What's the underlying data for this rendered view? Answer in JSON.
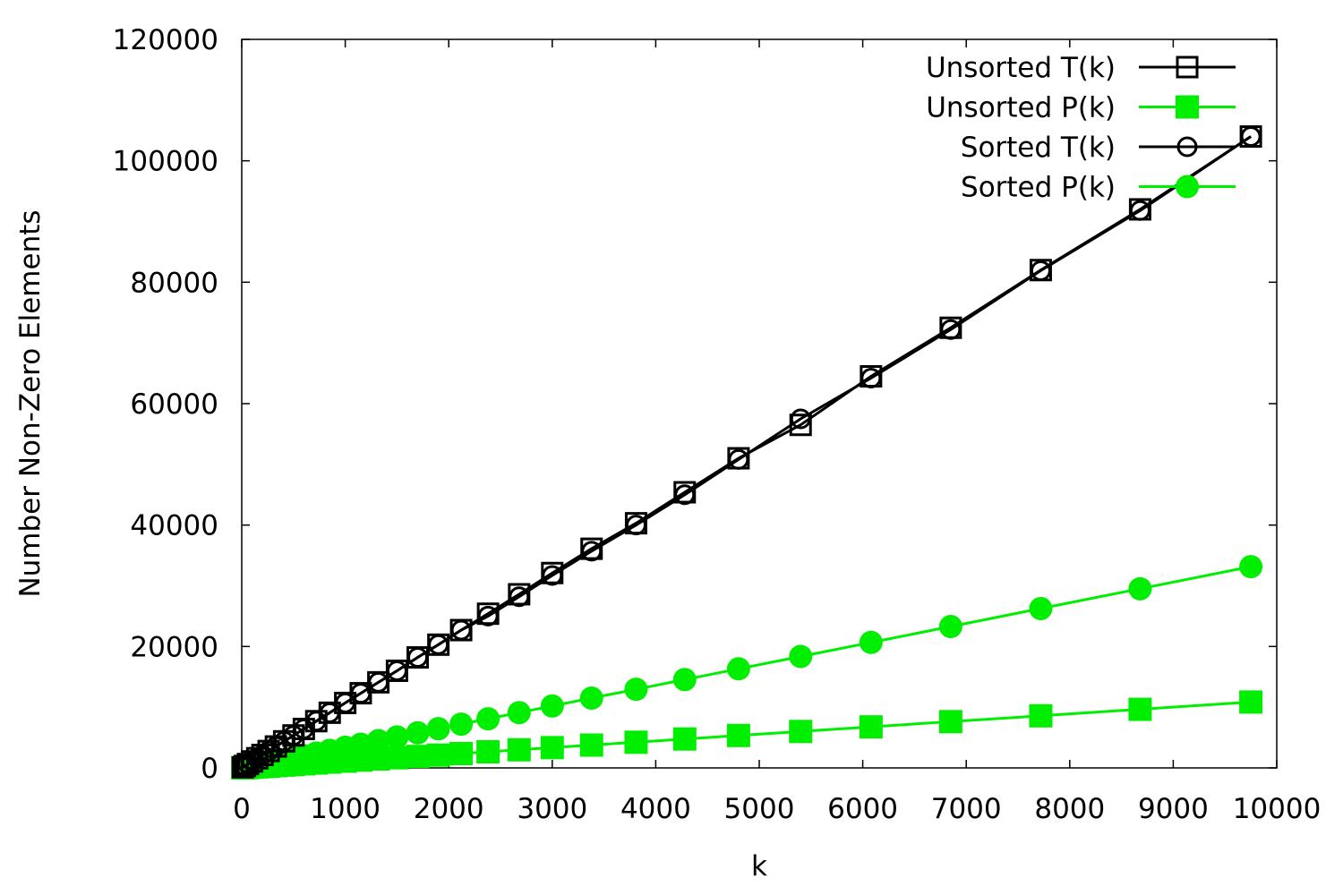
{
  "chart_data": {
    "type": "line",
    "title": "",
    "xlabel": "k",
    "ylabel": "Number Non-Zero Elements",
    "xlim": [
      0,
      10000
    ],
    "ylim": [
      0,
      120000
    ],
    "x_ticks": [
      "0",
      "1000",
      "2000",
      "3000",
      "4000",
      "5000",
      "6000",
      "7000",
      "8000",
      "9000",
      "10000"
    ],
    "y_ticks": [
      "0",
      "20000",
      "40000",
      "60000",
      "80000",
      "100000",
      "120000"
    ],
    "grid": false,
    "legend_position": "top-right",
    "x": [
      10,
      30,
      60,
      100,
      150,
      200,
      260,
      330,
      410,
      500,
      600,
      720,
      850,
      1000,
      1150,
      1320,
      1500,
      1700,
      1900,
      2120,
      2380,
      2680,
      3000,
      3380,
      3810,
      4280,
      4800,
      5400,
      6080,
      6850,
      7720,
      8680,
      9750
    ],
    "series": [
      {
        "name": "Unsorted T(k)",
        "color": "#000000",
        "marker": "open-square",
        "values": [
          110,
          320,
          640,
          1070,
          1600,
          2140,
          2780,
          3530,
          4380,
          5350,
          6420,
          7700,
          9090,
          10700,
          12300,
          14100,
          16000,
          18200,
          20300,
          22700,
          25400,
          28600,
          32100,
          36100,
          40300,
          45400,
          51000,
          56500,
          64500,
          72500,
          82000,
          92000,
          104000
        ]
      },
      {
        "name": "Unsorted P(k)",
        "color": "#00ee00",
        "marker": "filled-square",
        "values": [
          11,
          33,
          66,
          110,
          165,
          220,
          290,
          370,
          460,
          560,
          670,
          800,
          950,
          1110,
          1280,
          1470,
          1670,
          1890,
          2110,
          2360,
          2650,
          2980,
          3340,
          3760,
          4230,
          4760,
          5340,
          6000,
          6760,
          7620,
          8580,
          9650,
          10850
        ]
      },
      {
        "name": "Sorted T(k)",
        "color": "#000000",
        "marker": "open-circle",
        "values": [
          110,
          320,
          640,
          1070,
          1600,
          2140,
          2780,
          3530,
          4380,
          5350,
          6420,
          7700,
          9090,
          10700,
          12300,
          14100,
          16000,
          18200,
          20300,
          22700,
          25000,
          28200,
          31700,
          35700,
          40000,
          45000,
          50800,
          57500,
          64200,
          72200,
          81900,
          91800,
          104000
        ]
      },
      {
        "name": "Sorted P(k)",
        "color": "#00ee00",
        "marker": "filled-circle",
        "values": [
          34,
          100,
          200,
          340,
          510,
          680,
          880,
          1120,
          1390,
          1700,
          2040,
          2450,
          2890,
          3400,
          3910,
          4490,
          5100,
          5780,
          6460,
          7210,
          8090,
          9110,
          10200,
          11500,
          12950,
          14550,
          16320,
          18360,
          20670,
          23290,
          26250,
          29510,
          33150
        ]
      }
    ]
  }
}
